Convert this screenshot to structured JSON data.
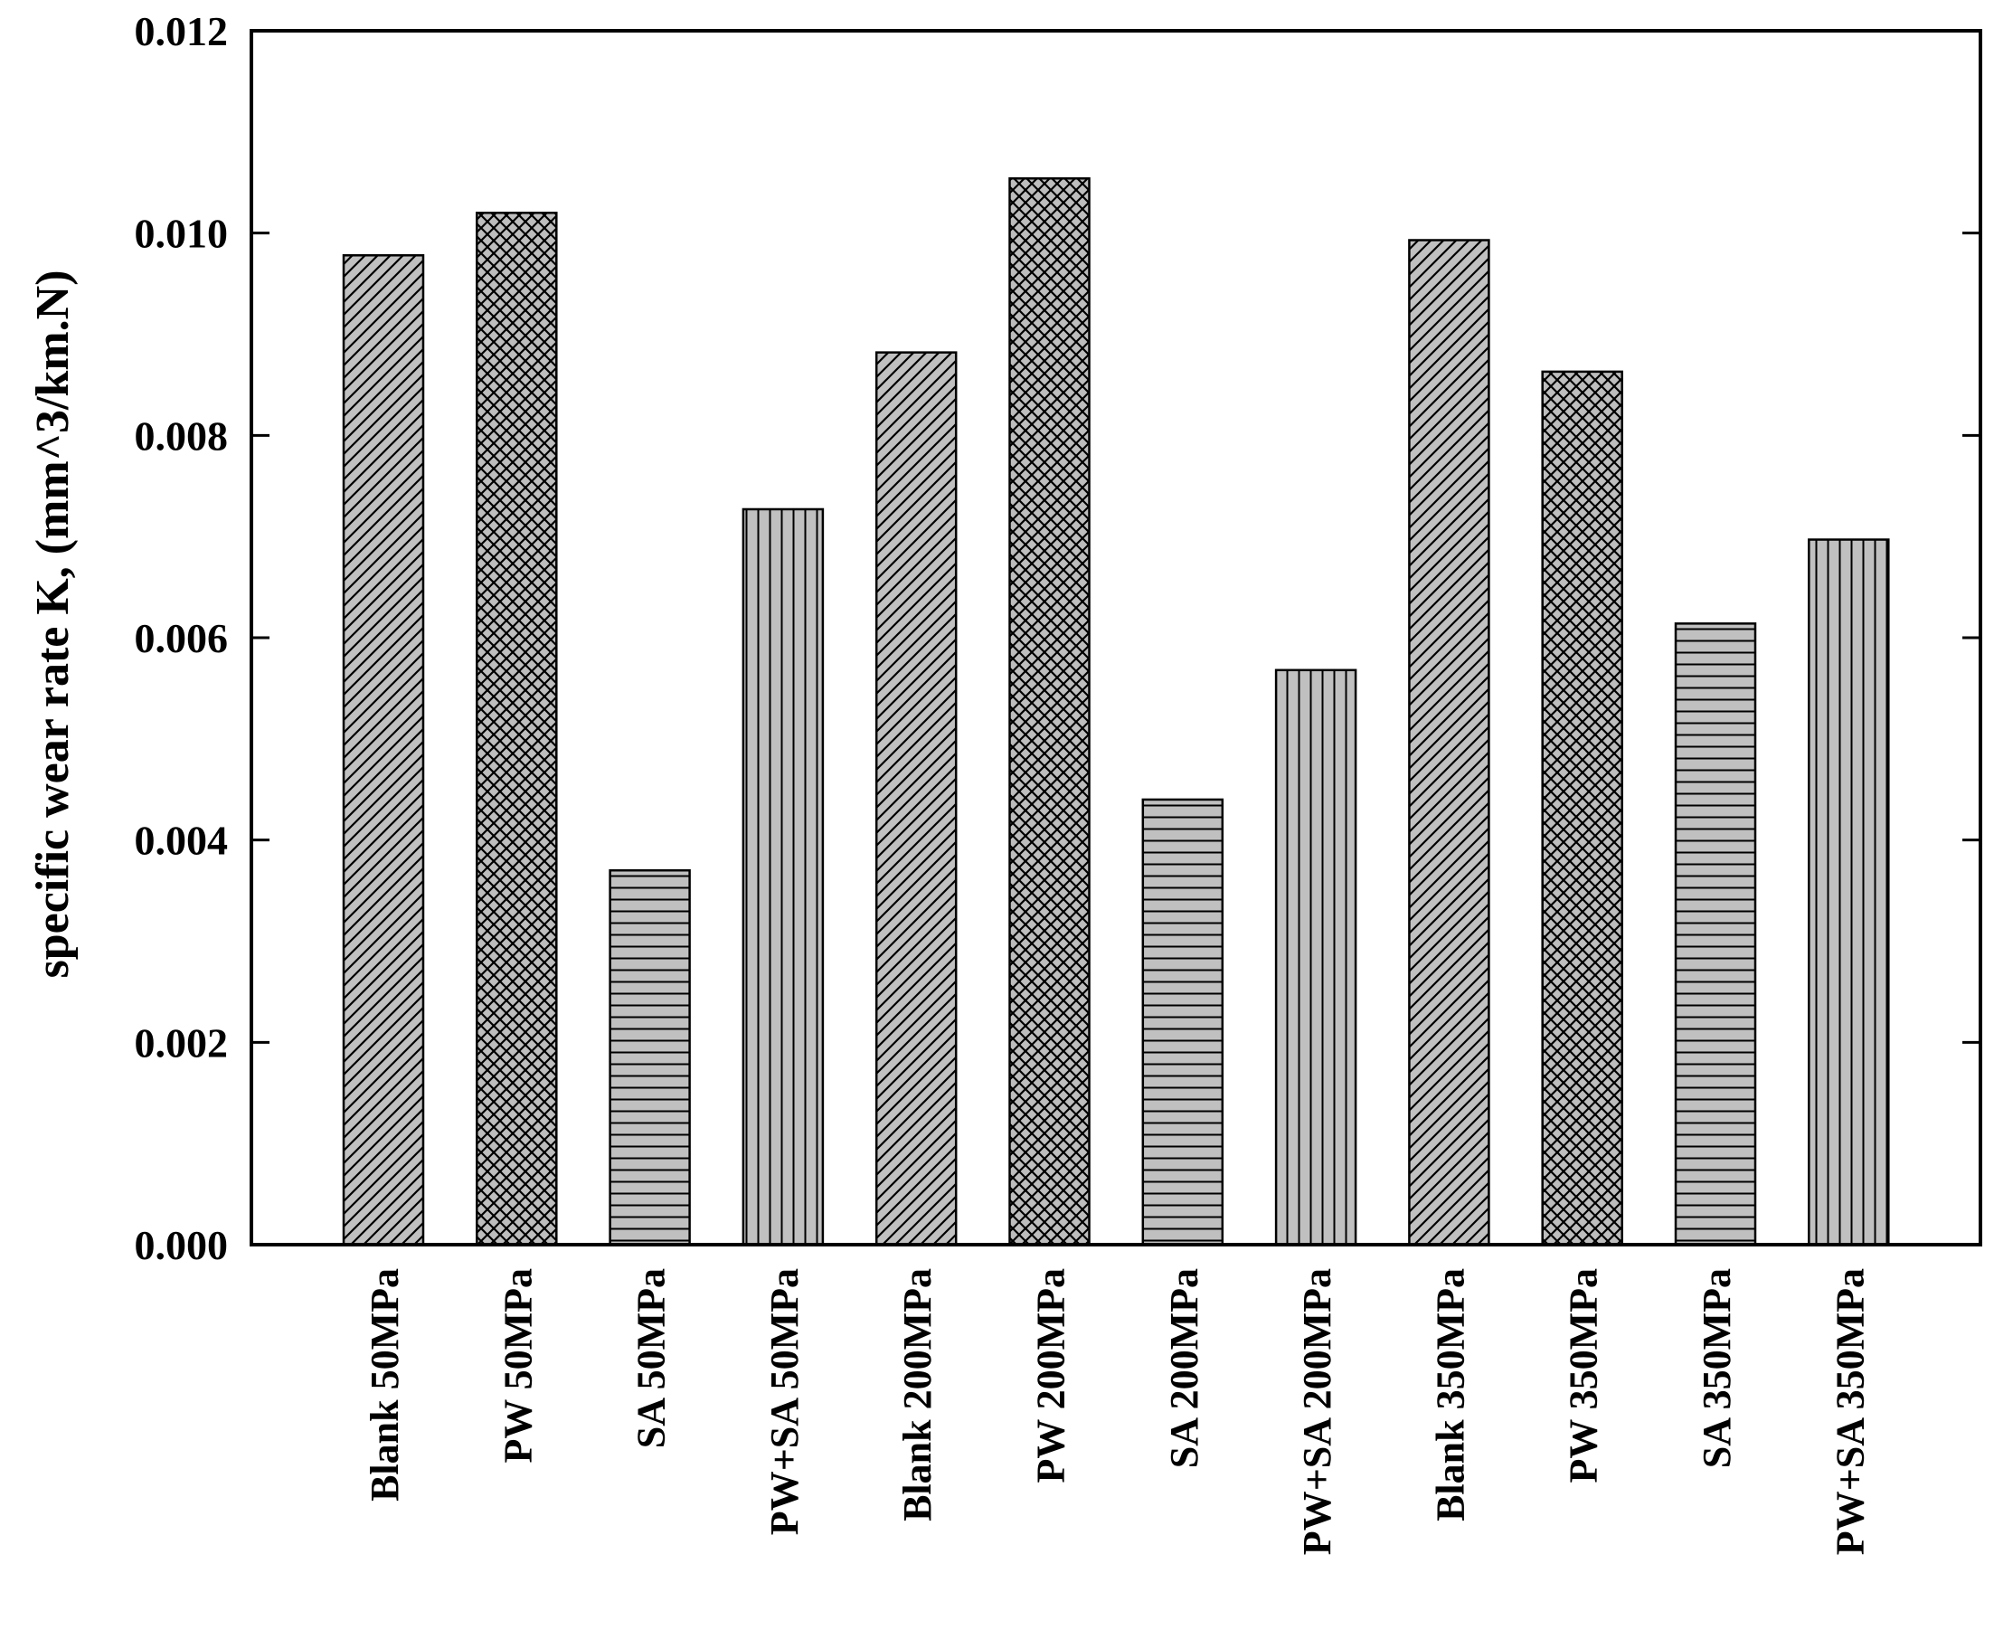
{
  "chart_data": {
    "type": "bar",
    "title": "",
    "xlabel": "",
    "ylabel": "specific wear rate K, (mm^3/km.N)",
    "ylim": [
      0,
      0.012
    ],
    "yticks": [
      "0.000",
      "0.002",
      "0.004",
      "0.006",
      "0.008",
      "0.010",
      "0.012"
    ],
    "grid": false,
    "legend": "none",
    "categories": [
      "Blank 50MPa",
      "PW 50MPa",
      "SA 50MPa",
      "PW+SA 50MPa",
      "Blank 200MPa",
      "PW 200MPa",
      "SA 200MPa",
      "PW+SA 200MPa",
      "Blank 350MPa",
      "PW 350MPa",
      "SA 350MPa",
      "PW+SA 350MPa"
    ],
    "values": [
      0.00978,
      0.0102,
      0.0037,
      0.00727,
      0.00882,
      0.01054,
      0.0044,
      0.00568,
      0.00993,
      0.00863,
      0.00614,
      0.00697
    ],
    "patterns": [
      "diagonal",
      "crosshatch",
      "horizontal",
      "vertical",
      "diagonal",
      "crosshatch",
      "horizontal",
      "vertical",
      "diagonal",
      "crosshatch",
      "horizontal",
      "vertical"
    ],
    "colors": {
      "bar_fill": "#c0c0c0",
      "hatch": "#000000",
      "axis": "#000000"
    }
  }
}
